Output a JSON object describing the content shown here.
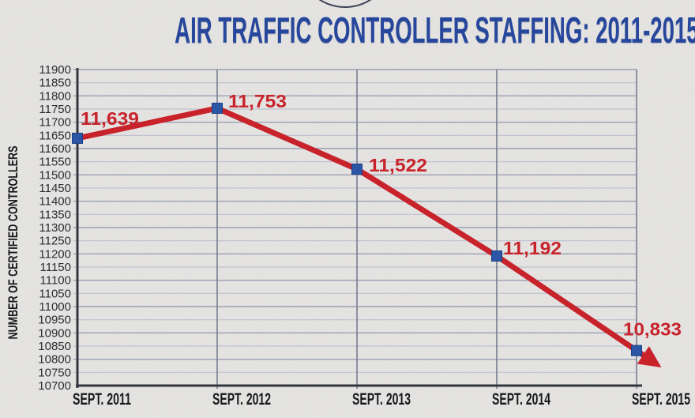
{
  "header": {
    "title": "AIR TRAFFIC CONTROLLER STAFFING: 2011-2015",
    "title_color": "#27479d"
  },
  "chart_data": {
    "type": "line",
    "title": "AIR TRAFFIC CONTROLLER STAFFING: 2011-2015",
    "ylabel": "NUMBER OF CERTIFIED CONTROLLERS",
    "xlabel": "",
    "categories": [
      "SEPT. 2011",
      "SEPT. 2012",
      "SEPT. 2013",
      "SEPT. 2014",
      "SEPT. 2015"
    ],
    "values": [
      11639,
      11753,
      11522,
      11192,
      10833
    ],
    "point_labels": [
      "11,639",
      "11,753",
      "11,522",
      "11,192",
      "10,833"
    ],
    "ylim": [
      10700,
      11900
    ],
    "ytick_step": 50,
    "yticks": [
      11900,
      11850,
      11800,
      11750,
      11700,
      11650,
      11600,
      11550,
      11500,
      11450,
      11400,
      11350,
      11300,
      11250,
      11200,
      11150,
      11100,
      11050,
      11000,
      10950,
      10900,
      10850,
      10800,
      10750,
      10700
    ],
    "grid": true,
    "legend": false,
    "trend_arrow": true,
    "marker": "square",
    "line_color": "#c8222b",
    "marker_color": "#2b55a5",
    "marker_border_color": "#1e3f85",
    "data_label_color": "#c8222b",
    "axis_color": "#33363f",
    "grid_color": "#bdc1ce",
    "grid_major_color": "#9aa0b3",
    "grid_vertical_color": "#767d90",
    "tick_label_color": "#2b2d33",
    "x_label_color": "#17181c"
  }
}
